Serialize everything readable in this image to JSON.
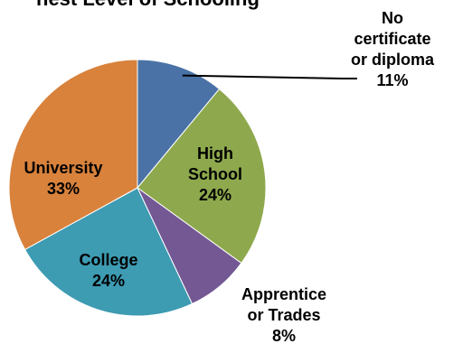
{
  "chart_data": {
    "type": "pie",
    "title": "hest Level of Schooling",
    "slices": [
      {
        "label_lines": [
          "No",
          "certificate",
          "or diploma"
        ],
        "pct_label": "11%",
        "value": 11,
        "color": "#4a72a6"
      },
      {
        "label_lines": [
          "High",
          "School"
        ],
        "pct_label": "24%",
        "value": 24,
        "color": "#8ea94d"
      },
      {
        "label_lines": [
          "Apprentice",
          "or Trades"
        ],
        "pct_label": "8%",
        "value": 8,
        "color": "#735894"
      },
      {
        "label_lines": [
          "College"
        ],
        "pct_label": "24%",
        "value": 24,
        "color": "#3d9bb2"
      },
      {
        "label_lines": [
          "University"
        ],
        "pct_label": "33%",
        "value": 33,
        "color": "#d8823c"
      }
    ]
  }
}
